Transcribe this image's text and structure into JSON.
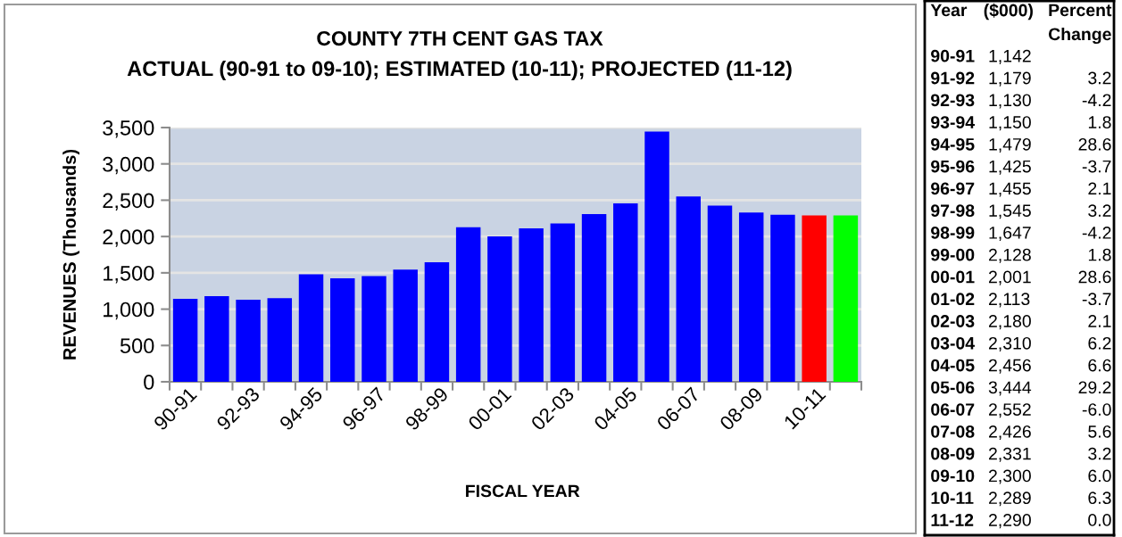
{
  "chart_data": [
    {
      "type": "bar",
      "title": "COUNTY 7TH CENT GAS TAX",
      "subtitle": "ACTUAL (90-91 to 09-10); ESTIMATED (10-11); PROJECTED (11-12)",
      "xlabel": "FISCAL YEAR",
      "ylabel": "REVENUES (Thousands)",
      "categories": [
        "90-91",
        null,
        "92-93",
        null,
        "94-95",
        null,
        "96-97",
        null,
        "98-99",
        null,
        "00-01",
        null,
        "02-03",
        null,
        "04-05",
        null,
        "06-07",
        null,
        "08-09",
        null,
        "10-11",
        null
      ],
      "values": [
        1142,
        1179,
        1130,
        1150,
        1479,
        1425,
        1455,
        1545,
        1647,
        2128,
        2001,
        2113,
        2180,
        2310,
        2456,
        3444,
        2552,
        2426,
        2331,
        2300,
        2289,
        2290
      ],
      "colors": [
        "#0000ff",
        "#0000ff",
        "#0000ff",
        "#0000ff",
        "#0000ff",
        "#0000ff",
        "#0000ff",
        "#0000ff",
        "#0000ff",
        "#0000ff",
        "#0000ff",
        "#0000ff",
        "#0000ff",
        "#0000ff",
        "#0000ff",
        "#0000ff",
        "#0000ff",
        "#0000ff",
        "#0000ff",
        "#0000ff",
        "#ff0000",
        "#00ff00"
      ],
      "ylim": [
        0,
        3500
      ],
      "yticks": [
        0,
        500,
        {
          "value": 1000,
          "label": "1,000"
        },
        {
          "value": 1500,
          "label": "1,500"
        },
        {
          "value": 2000,
          "label": "2,000"
        },
        {
          "value": 2500,
          "label": "2,500"
        },
        {
          "value": 3000,
          "label": "3,000"
        },
        {
          "value": 3500,
          "label": "3,500"
        }
      ],
      "grid": "y"
    },
    {
      "type": "other",
      "xlabel": "Year",
      "categories": [
        "90-91",
        "91-92",
        "92-93",
        "93-94",
        "94-95",
        "95-96",
        "96-97",
        "97-98",
        "98-99",
        "99-00",
        "00-01",
        "01-02",
        "02-03",
        "03-04",
        "04-05",
        "05-06",
        "06-07",
        "07-08",
        "08-09",
        "09-10",
        "10-11",
        "11-12"
      ],
      "series": [
        {
          "name": "($000)",
          "values": [
            1142,
            1179,
            1130,
            1150,
            1479,
            1425,
            1455,
            1545,
            1647,
            2128,
            2001,
            2113,
            2180,
            2310,
            2456,
            3444,
            2552,
            2426,
            2331,
            2300,
            2289,
            2290
          ],
          "value_labels": [
            "1,142",
            "1,179",
            "1,130",
            "1,150",
            "1,479",
            "1,425",
            "1,455",
            "1,545",
            "1,647",
            "2,128",
            "2,001",
            "2,113",
            "2,180",
            "2,310",
            "2,456",
            "3,444",
            "2,552",
            "2,426",
            "2,331",
            "2,300",
            "2,289",
            "2,290"
          ]
        },
        {
          "name": "Percent Change",
          "values": [
            null,
            3.2,
            -4.2,
            1.8,
            28.6,
            -3.7,
            2.1,
            3.2,
            -4.2,
            1.8,
            28.6,
            -3.7,
            2.1,
            6.2,
            6.6,
            29.2,
            -6.0,
            5.6,
            3.2,
            6.0,
            6.3,
            0.0
          ],
          "value_labels": [
            null,
            "3.2",
            "-4.2",
            "1.8",
            "28.6",
            "-3.7",
            "2.1",
            "3.2",
            "-4.2",
            "1.8",
            "28.6",
            "-3.7",
            "2.1",
            "6.2",
            "6.6",
            "29.2",
            "-6.0",
            "5.6",
            "3.2",
            "6.0",
            "6.3",
            "0.0"
          ]
        }
      ]
    }
  ]
}
